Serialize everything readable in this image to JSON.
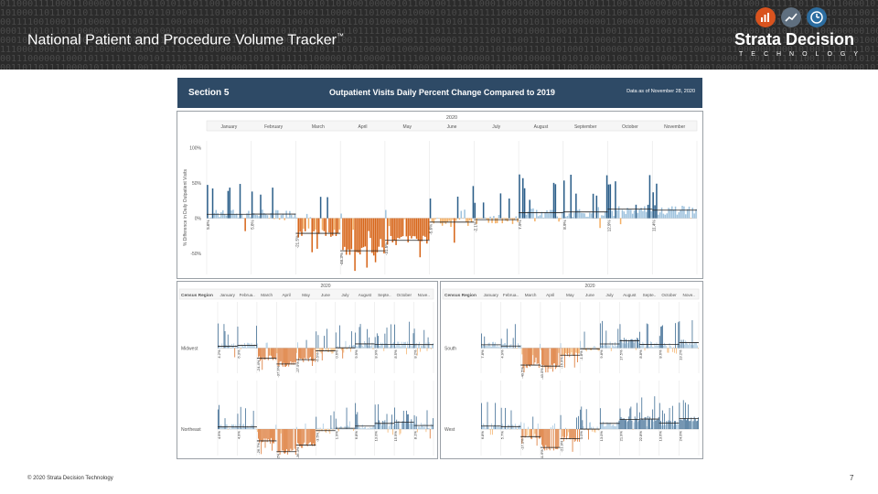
{
  "slide": {
    "title": "National Patient and Procedure Volume Tracker",
    "title_mark": "™",
    "brand": "Strata Decision",
    "brand_sub": "TECHNOLOGY",
    "footer": "© 2020 Strata Decision Technology",
    "page_number": "7"
  },
  "section": {
    "label": "Section 5",
    "title": "Outpatient Visits Daily Percent Change Compared to 2019",
    "date_note": "Data as of November 28, 2020"
  },
  "colors": {
    "header_bg": "#2b2b2b",
    "binary_text": "#4a4a4a",
    "banner": "#2e4a66",
    "positive_dark": "#2c5f8a",
    "positive_light": "#9fc3de",
    "negative_dark": "#d7661a",
    "negative_light": "#f4b066",
    "logo_icons": [
      "#d9531e",
      "#5f6f7f",
      "#2c6da0"
    ]
  },
  "icons": [
    "bar-chart-logo-icon",
    "trend-logo-icon",
    "clock-logo-icon"
  ],
  "chart_data": [
    {
      "type": "bar",
      "name": "national",
      "year": "2020",
      "months": [
        "January",
        "February",
        "March",
        "April",
        "May",
        "June",
        "July",
        "August",
        "September",
        "October",
        "November"
      ],
      "ylabel": "% Difference in Daily Outpatient Visits",
      "yticks": [
        "100%",
        "50%",
        "0%",
        "-50%"
      ],
      "ylim": [
        -80,
        110
      ],
      "monthly_avg": [
        5.6,
        5.8,
        -21.5,
        -46.3,
        -31.5,
        -5.6,
        -2.1,
        7.9,
        8.9,
        12.9,
        11.4
      ],
      "labels": [
        "5.6%",
        "5.8%",
        "-21.5%",
        "-46.3%",
        "-31.5%",
        "-5.6%",
        "-2.1%",
        "7.9%",
        "8.9%",
        "12.9%",
        "11.4%"
      ]
    },
    {
      "type": "bar",
      "name": "midwest",
      "region": "Midwest",
      "header": "Census Region",
      "year": "2020",
      "months": [
        "January",
        "Februa..",
        "March",
        "April",
        "May",
        "June",
        "July",
        "August",
        "Septe..",
        "October",
        "Nove.."
      ],
      "monthly_avg": [
        4.2,
        6.3,
        -24.4,
        -37.9,
        -27.5,
        -6.5,
        0.6,
        9.9,
        8.9,
        8.5,
        8.2
      ],
      "labels": [
        "4.2%",
        "6.3%",
        "-24.4%",
        "-37.9%",
        "-27.5%",
        "-6.5%",
        "0.6%",
        "9.9%",
        "8.9%",
        "8.5%",
        "8.2%"
      ]
    },
    {
      "type": "bar",
      "name": "south",
      "region": "South",
      "header": "Census Region",
      "year": "2020",
      "months": [
        "January",
        "Februa..",
        "March",
        "April",
        "May",
        "June",
        "July",
        "August",
        "Septe..",
        "October",
        "Nove.."
      ],
      "monthly_avg": [
        7.8,
        4.9,
        -40.5,
        -43.0,
        -16.9,
        -1.8,
        9.8,
        17.5,
        8.8,
        8.6,
        13.2
      ],
      "labels": [
        "7.8%",
        "4.9%",
        "-40.5%",
        "-43.0%",
        "-16.9%",
        "-1.8%",
        "9.8%",
        "17.5%",
        "8.8%",
        "8.6%",
        "13.2%"
      ]
    },
    {
      "type": "bar",
      "name": "northeast",
      "region": "Northeast",
      "header": "",
      "year": "",
      "months": [],
      "monthly_avg": [
        4.9,
        4.9,
        -26.7,
        -51.2,
        -36.3,
        -3.5,
        1.9,
        6.8,
        13.0,
        15.9,
        8.1
      ],
      "labels": [
        "4.9%",
        "4.9%",
        "-26.7%",
        "-51.2%",
        "-36.3%",
        "-3.5%",
        "1.9%",
        "6.8%",
        "13.0%",
        "15.9%",
        "8.1%"
      ]
    },
    {
      "type": "bar",
      "name": "west",
      "region": "West",
      "header": "",
      "year": "",
      "months": [],
      "monthly_avg": [
        6.8,
        5.7,
        -17.1,
        -41.6,
        -21.9,
        0.0,
        13.0,
        21.9,
        22.8,
        13.6,
        24.0
      ],
      "labels": [
        "6.8%",
        "5.7%",
        "-17.1%",
        "-41.6%",
        "-21.9%",
        "0.0%",
        "13.0%",
        "21.9%",
        "22.8%",
        "13.6%",
        "24.0%"
      ]
    }
  ]
}
